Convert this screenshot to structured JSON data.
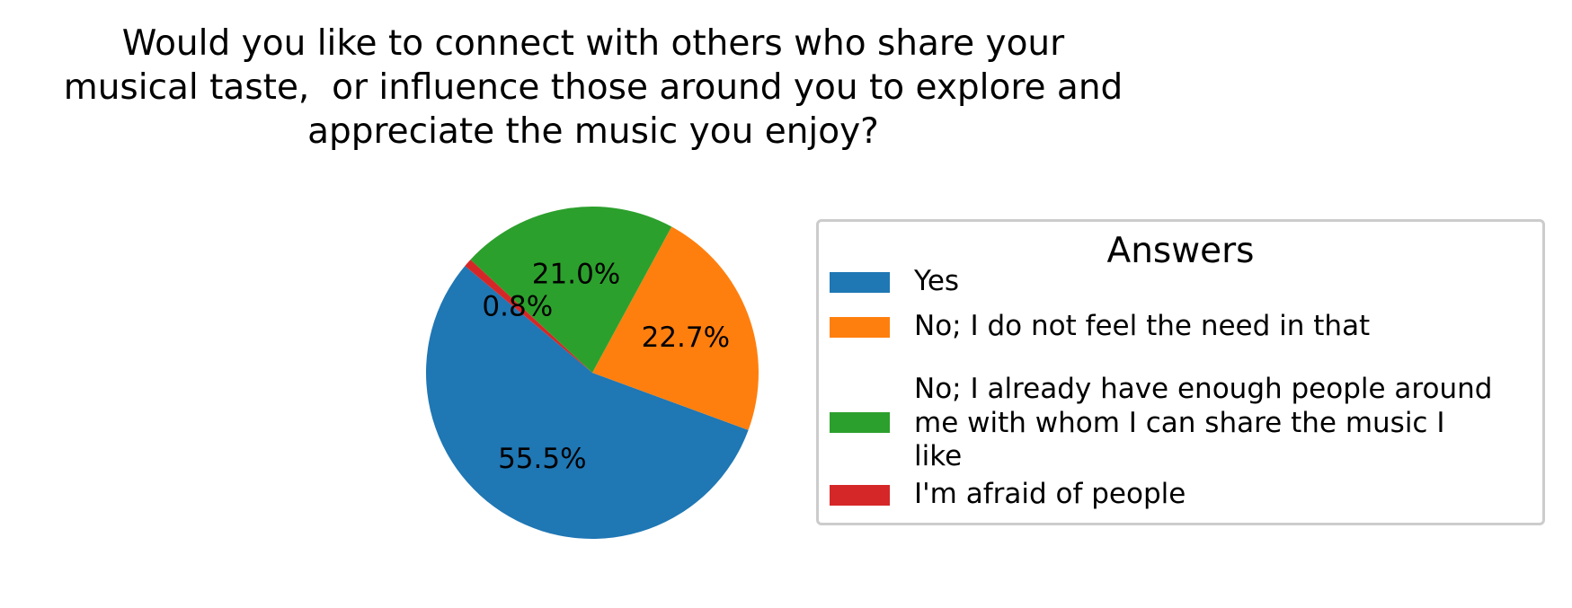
{
  "chart_data": {
    "type": "pie",
    "title": "Would you like to connect with others who share your\nmusical taste,  or influence those around you to explore and\nappreciate the music you enjoy?",
    "title_lines": [
      "Would you like to connect with others who share your",
      "musical taste,  or influence those around you to explore and",
      "appreciate the music you enjoy?"
    ],
    "legend_title": "Answers",
    "legend_placement": "right",
    "start_angle_deg": 140,
    "direction": "counterclockwise",
    "slices": [
      {
        "label": "Yes",
        "label_lines": [
          "Yes"
        ],
        "value": 55.5,
        "pct_label": "55.5%",
        "color": "#1f77b4"
      },
      {
        "label": "No; I do not feel the need in that",
        "label_lines": [
          "No; I do not feel the need in that"
        ],
        "value": 22.7,
        "pct_label": "22.7%",
        "color": "#ff7f0e"
      },
      {
        "label": "No; I already have enough people around me with whom I can share the music I like",
        "label_lines": [
          "No; I already have enough people around",
          "me with whom I can share the music I",
          "like"
        ],
        "value": 21.0,
        "pct_label": "21.0%",
        "color": "#2ca02c"
      },
      {
        "label": "I'm afraid of people",
        "label_lines": [
          "I'm afraid of people"
        ],
        "value": 0.8,
        "pct_label": "0.8%",
        "color": "#d62728"
      }
    ]
  }
}
